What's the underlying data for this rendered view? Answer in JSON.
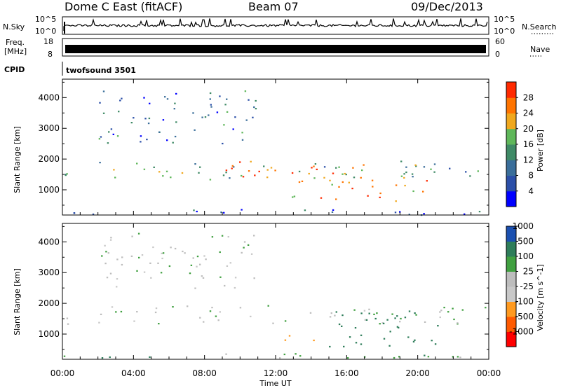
{
  "header": {
    "station": "Dome C East (fitACF)",
    "beam": "Beam 07",
    "date": "09/Dec/2013"
  },
  "status_panels": {
    "nsky_label": "N.Sky",
    "nsearch_label": "N.Search",
    "noise_tick_top": "10^5",
    "noise_tick_bottom": "10^0",
    "freq_label_line1": "Freq.",
    "freq_label_line2": "[MHz]",
    "freq_ticks": [
      "18",
      "8"
    ],
    "nave_label": "Nave",
    "nave_ticks": [
      "60",
      "0"
    ],
    "cpid_label": "CPID",
    "cpid_value": "twofsound 3501"
  },
  "colors": {
    "power": [
      "#0000ff",
      "#2b4fa8",
      "#3a6e9a",
      "#3f8a66",
      "#5fb75a",
      "#f0a81e",
      "#ff7400",
      "#ff2a00"
    ],
    "velocity": [
      "#ff0000",
      "#ff5a00",
      "#ff9a20",
      "#c8c8c8",
      "#bdbdbd",
      "#40a040",
      "#2e7d5a",
      "#1b50b0"
    ]
  },
  "chart_data": [
    {
      "type": "heatmap",
      "title": "Power",
      "xlabel": "Time UT",
      "ylabel": "Slant Range [km]",
      "x_ticks": [
        "00:00",
        "04:00",
        "08:00",
        "12:00",
        "16:00",
        "20:00",
        "00:00"
      ],
      "y_ticks": [
        1000,
        2000,
        3000,
        4000
      ],
      "ylim": [
        180,
        4600
      ],
      "colorbar_label": "Power [dB]",
      "colorbar_ticks": [
        "4",
        "8",
        "12",
        "16",
        "20",
        "24",
        "28"
      ],
      "colorbar_range": [
        0,
        30
      ],
      "regions": [
        {
          "t0": 0.0,
          "t1": 24.0,
          "r0": 1350,
          "r1": 1950,
          "value": 14
        },
        {
          "t0": 7.0,
          "t1": 17.0,
          "r0": 1400,
          "r1": 1950,
          "value": 26
        },
        {
          "t0": 12.0,
          "t1": 16.5,
          "r0": 700,
          "r1": 1400,
          "value": 22
        },
        {
          "t0": 17.0,
          "t1": 20.5,
          "r0": 600,
          "r1": 1500,
          "value": 24
        },
        {
          "t0": 2.0,
          "t1": 11.0,
          "r0": 2500,
          "r1": 4300,
          "value": 9
        },
        {
          "t0": 0.0,
          "t1": 24.0,
          "r0": 200,
          "r1": 400,
          "value": 7
        }
      ]
    },
    {
      "type": "heatmap",
      "title": "Velocity",
      "xlabel": "Time UT",
      "ylabel": "Slant Range [km]",
      "x_ticks": [
        "00:00",
        "04:00",
        "08:00",
        "12:00",
        "16:00",
        "20:00",
        "00:00"
      ],
      "y_ticks": [
        1000,
        2000,
        3000,
        4000
      ],
      "ylim": [
        180,
        4600
      ],
      "colorbar_label": "Velocity [m s^-1]",
      "colorbar_ticks": [
        "-1000",
        "-500",
        "-100",
        "-25",
        "25",
        "100",
        "500",
        "1000"
      ],
      "regions": [
        {
          "t0": 0.0,
          "t1": 24.0,
          "r0": 1350,
          "r1": 1950,
          "value": 0
        },
        {
          "t0": 15.0,
          "t1": 21.5,
          "r0": 600,
          "r1": 1900,
          "value": 300
        },
        {
          "t0": 12.0,
          "t1": 14.5,
          "r0": 700,
          "r1": 1000,
          "value": -200
        },
        {
          "t0": 2.0,
          "t1": 11.0,
          "r0": 2500,
          "r1": 4300,
          "value": 0
        },
        {
          "t0": 0.0,
          "t1": 24.0,
          "r0": 200,
          "r1": 400,
          "value": 80
        }
      ]
    }
  ]
}
